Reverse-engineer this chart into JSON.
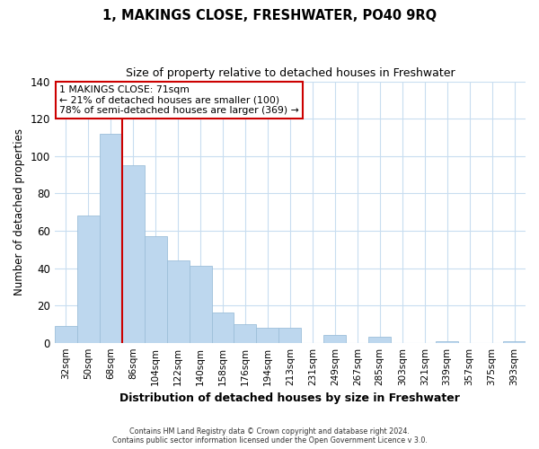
{
  "title": "1, MAKINGS CLOSE, FRESHWATER, PO40 9RQ",
  "subtitle": "Size of property relative to detached houses in Freshwater",
  "xlabel": "Distribution of detached houses by size in Freshwater",
  "ylabel": "Number of detached properties",
  "bar_color": "#bdd7ee",
  "bar_edge_color": "#9dbfda",
  "categories": [
    "32sqm",
    "50sqm",
    "68sqm",
    "86sqm",
    "104sqm",
    "122sqm",
    "140sqm",
    "158sqm",
    "176sqm",
    "194sqm",
    "213sqm",
    "231sqm",
    "249sqm",
    "267sqm",
    "285sqm",
    "303sqm",
    "321sqm",
    "339sqm",
    "357sqm",
    "375sqm",
    "393sqm"
  ],
  "values": [
    9,
    68,
    112,
    95,
    57,
    44,
    41,
    16,
    10,
    8,
    8,
    0,
    4,
    0,
    3,
    0,
    0,
    1,
    0,
    0,
    1
  ],
  "ylim": [
    0,
    140
  ],
  "yticks": [
    0,
    20,
    40,
    60,
    80,
    100,
    120,
    140
  ],
  "property_line_bar_index": 2,
  "property_line_color": "#cc0000",
  "annotation_line1": "1 MAKINGS CLOSE: 71sqm",
  "annotation_line2": "← 21% of detached houses are smaller (100)",
  "annotation_line3": "78% of semi-detached houses are larger (369) →",
  "annotation_box_color": "#ffffff",
  "annotation_box_edge": "#cc0000",
  "footer_line1": "Contains HM Land Registry data © Crown copyright and database right 2024.",
  "footer_line2": "Contains public sector information licensed under the Open Government Licence v 3.0.",
  "background_color": "#ffffff",
  "grid_color": "#c8ddf0"
}
